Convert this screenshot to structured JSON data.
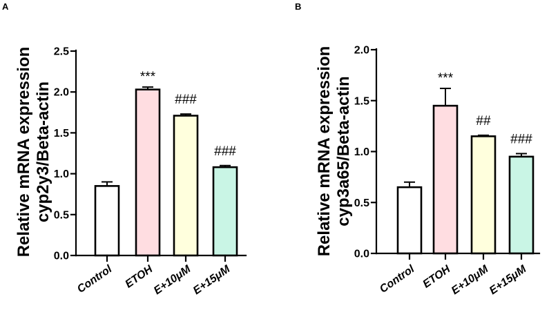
{
  "chart_data": [
    {
      "panel": "A",
      "type": "bar",
      "categories": [
        "Control",
        "ETOH",
        "E+10μM",
        "E+15μM"
      ],
      "values": [
        0.85,
        2.03,
        1.71,
        1.08
      ],
      "errors": [
        0.05,
        0.03,
        0.02,
        0.02
      ],
      "colors": [
        "#ffffff",
        "#ffdde1",
        "#ffffdd",
        "#c9f5e5"
      ],
      "significance": [
        null,
        "***",
        "###",
        "###"
      ],
      "ylabel": [
        "Relative mRNA expression",
        "cyp2y3/Beta-actin"
      ],
      "ylim": [
        0,
        2.5
      ],
      "yticks": [
        "0.0",
        "0.5",
        "1.0",
        "1.5",
        "2.0",
        "2.5"
      ],
      "grid": false
    },
    {
      "panel": "B",
      "type": "bar",
      "categories": [
        "Control",
        "ETOH",
        "E+10μM",
        "E+15μM"
      ],
      "values": [
        0.65,
        1.45,
        1.15,
        0.95
      ],
      "errors": [
        0.05,
        0.17,
        0.01,
        0.03
      ],
      "colors": [
        "#ffffff",
        "#ffdde1",
        "#ffffdd",
        "#c9f5e5"
      ],
      "significance": [
        null,
        "***",
        "##",
        "###"
      ],
      "ylabel": [
        "Relative mRNA expression",
        "cyp3a65/Beta-actin"
      ],
      "ylim": [
        0,
        2.0
      ],
      "yticks": [
        "0.0",
        "0.5",
        "1.0",
        "1.5",
        "2.0"
      ],
      "grid": false
    }
  ]
}
